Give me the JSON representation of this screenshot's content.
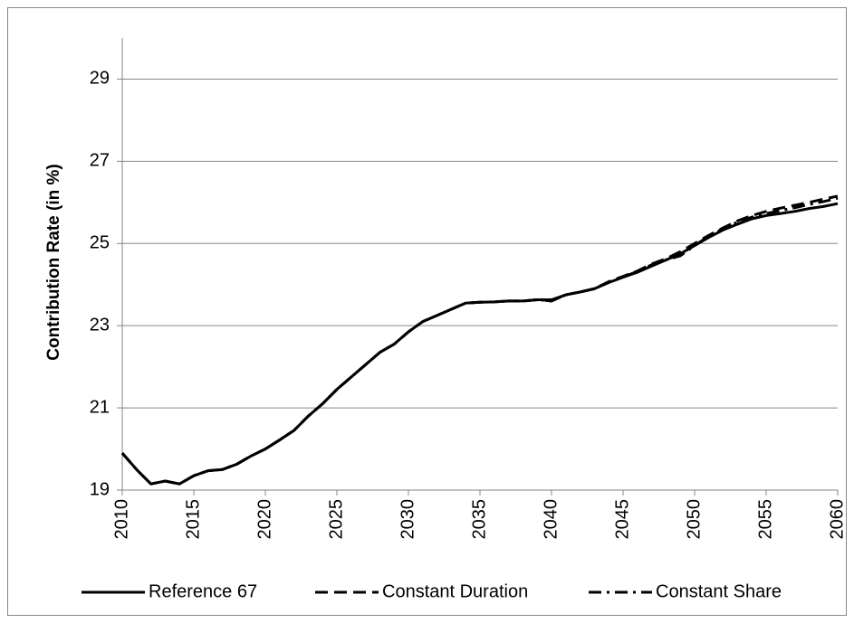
{
  "chart_data": {
    "type": "line",
    "y_label": "Contribution Rate (in %)",
    "x": [
      2010,
      2011,
      2012,
      2013,
      2014,
      2015,
      2016,
      2017,
      2018,
      2019,
      2020,
      2021,
      2022,
      2023,
      2024,
      2025,
      2026,
      2027,
      2028,
      2029,
      2030,
      2031,
      2032,
      2033,
      2034,
      2035,
      2036,
      2037,
      2038,
      2039,
      2040,
      2041,
      2042,
      2043,
      2044,
      2045,
      2046,
      2047,
      2048,
      2049,
      2050,
      2051,
      2052,
      2053,
      2054,
      2055,
      2056,
      2057,
      2058,
      2059,
      2060
    ],
    "series": [
      {
        "name": "Reference 67",
        "color": "#000000",
        "line_style": "solid",
        "values": [
          19.9,
          19.5,
          19.15,
          19.22,
          19.15,
          19.35,
          19.47,
          19.5,
          19.63,
          19.83,
          20.0,
          20.22,
          20.45,
          20.8,
          21.1,
          21.45,
          21.75,
          22.05,
          22.35,
          22.55,
          22.85,
          23.1,
          23.25,
          23.4,
          23.55,
          23.57,
          23.58,
          23.6,
          23.6,
          23.63,
          23.63,
          23.75,
          23.82,
          23.9,
          24.05,
          24.18,
          24.3,
          24.45,
          24.6,
          24.75,
          24.95,
          25.15,
          25.33,
          25.47,
          25.6,
          25.68,
          25.73,
          25.78,
          25.85,
          25.9,
          25.97
        ]
      },
      {
        "name": "Constant Duration",
        "color": "#000000",
        "line_style": "dashed",
        "values": [
          19.9,
          19.5,
          19.15,
          19.22,
          19.15,
          19.35,
          19.47,
          19.5,
          19.63,
          19.83,
          20.0,
          20.22,
          20.45,
          20.8,
          21.1,
          21.45,
          21.75,
          22.05,
          22.35,
          22.55,
          22.85,
          23.1,
          23.25,
          23.4,
          23.55,
          23.57,
          23.58,
          23.6,
          23.6,
          23.63,
          23.6,
          23.75,
          23.82,
          23.9,
          24.07,
          24.2,
          24.33,
          24.5,
          24.63,
          24.8,
          25.0,
          25.2,
          25.38,
          25.55,
          25.68,
          25.78,
          25.86,
          25.93,
          26.0,
          26.08,
          26.15
        ]
      },
      {
        "name": "Constant Share",
        "color": "#000000",
        "line_style": "dashdot",
        "values": [
          19.9,
          19.5,
          19.15,
          19.22,
          19.15,
          19.35,
          19.47,
          19.5,
          19.63,
          19.83,
          20.0,
          20.22,
          20.45,
          20.8,
          21.1,
          21.45,
          21.75,
          22.05,
          22.35,
          22.55,
          22.85,
          23.1,
          23.25,
          23.4,
          23.55,
          23.57,
          23.58,
          23.6,
          23.6,
          23.63,
          23.6,
          23.75,
          23.82,
          23.9,
          24.06,
          24.18,
          24.32,
          24.48,
          24.6,
          24.7,
          24.95,
          25.18,
          25.36,
          25.52,
          25.64,
          25.73,
          25.8,
          25.87,
          25.95,
          26.02,
          26.1
        ]
      }
    ],
    "xlim": [
      2010,
      2060
    ],
    "xticks": [
      2010,
      2015,
      2020,
      2025,
      2030,
      2035,
      2040,
      2045,
      2050,
      2055,
      2060
    ],
    "ylim": [
      19,
      30
    ],
    "yticks": [
      19,
      21,
      23,
      25,
      27,
      29
    ],
    "grid": true,
    "legend": "bottom"
  }
}
